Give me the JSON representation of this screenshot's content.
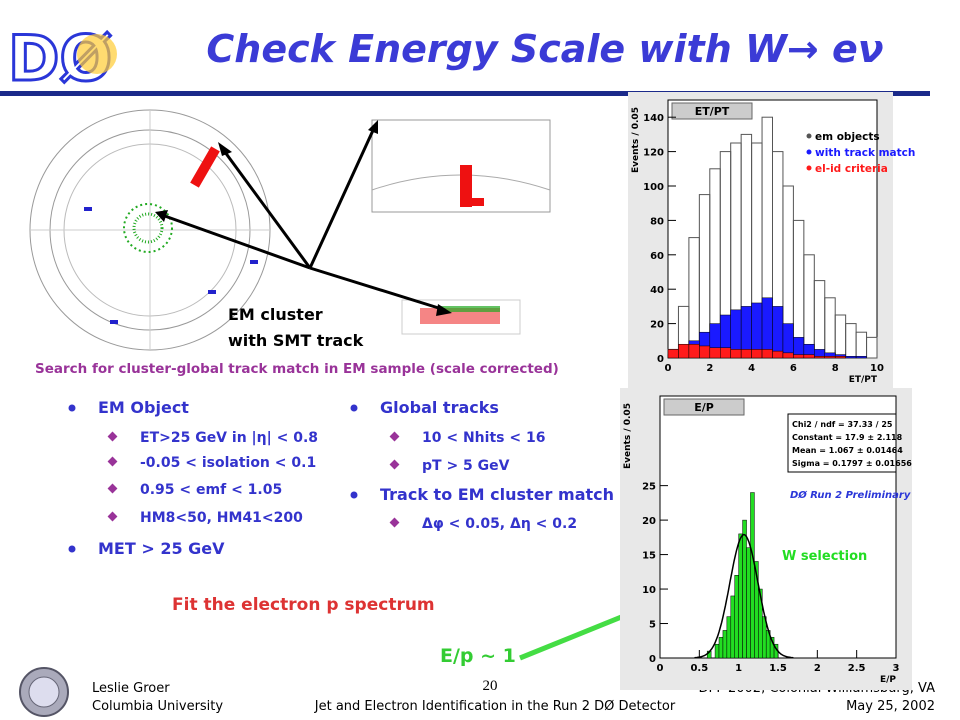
{
  "header": {
    "logo": "DØ",
    "title": "Check Energy Scale with W→ eν"
  },
  "event_display": {
    "label": [
      "EM cluster",
      "with SMT track"
    ]
  },
  "caption": "Search for cluster-global track match in EM sample (scale corrected)",
  "left_list": [
    {
      "text": "EM Object",
      "items": [
        "ET>25 GeV in |η| < 0.8",
        "-0.05 < isolation < 0.1",
        "0.95 < emf < 1.05",
        "HM8<50, HM41<200"
      ]
    },
    {
      "text": "MET > 25 GeV",
      "items": []
    }
  ],
  "right_list": [
    {
      "text": "Global tracks",
      "items": [
        "10 < Nhits < 16",
        "pT > 5 GeV"
      ]
    },
    {
      "text": "Track to EM cluster match",
      "items": [
        "Δφ < 0.05, Δη < 0.2"
      ]
    }
  ],
  "fit_note": "Fit the electron p spectrum",
  "ep_note": "E/p ~ 1",
  "w_selection": "W selection",
  "plots": [
    {
      "type": "histogram",
      "title": "ET/PT",
      "ylabel": "Events / 0.05",
      "xlabel": "ET/PT",
      "xlim": [
        0,
        10
      ],
      "ylim": [
        0,
        150
      ],
      "xticks": [
        0,
        2,
        4,
        6,
        8,
        10
      ],
      "yticks": [
        0,
        20,
        40,
        60,
        80,
        100,
        120,
        140
      ],
      "bins": [
        0,
        0.5,
        1,
        1.5,
        2,
        2.5,
        3,
        3.5,
        4,
        4.5,
        5,
        5.5,
        6,
        6.5,
        7,
        7.5,
        8,
        8.5,
        9,
        9.5,
        10
      ],
      "series": [
        {
          "name": "em objects",
          "color": "#555555",
          "values": [
            5,
            30,
            70,
            95,
            110,
            120,
            125,
            130,
            125,
            140,
            120,
            100,
            80,
            60,
            45,
            35,
            25,
            20,
            15,
            12
          ]
        },
        {
          "name": "with track match",
          "color": "#1a1aff",
          "values": [
            2,
            5,
            10,
            15,
            20,
            25,
            28,
            30,
            32,
            35,
            30,
            20,
            12,
            8,
            5,
            3,
            2,
            1,
            1,
            0
          ]
        },
        {
          "name": "el-id criteria",
          "color": "#ff1a1a",
          "values": [
            5,
            8,
            8,
            7,
            6,
            6,
            5,
            5,
            5,
            5,
            4,
            3,
            2,
            2,
            1,
            1,
            1,
            0,
            0,
            0
          ]
        }
      ]
    },
    {
      "type": "histogram",
      "title": "E/P",
      "ylabel": "Events / 0.05",
      "xlabel": "E/P",
      "xlim": [
        0,
        3
      ],
      "ylim": [
        0,
        38
      ],
      "xticks": [
        0,
        0.5,
        1,
        1.5,
        2,
        2.5,
        3
      ],
      "yticks": [
        0,
        5,
        10,
        15,
        20,
        25
      ],
      "stats": [
        "Chi2 / ndf = 37.33 / 25",
        "Constant = 17.9 ± 2.118",
        "Mean = 1.067 ± 0.01464",
        "Sigma = 0.1797 ± 0.01656"
      ],
      "fit": {
        "constant": 17.9,
        "mean": 1.067,
        "sigma": 0.1797
      },
      "preliminary": "DØ Run 2 Preliminary",
      "bins": [
        0.6,
        0.65,
        0.7,
        0.75,
        0.8,
        0.85,
        0.9,
        0.95,
        1,
        1.05,
        1.1,
        1.15,
        1.2,
        1.25,
        1.3,
        1.35,
        1.4,
        1.45,
        1.5
      ],
      "series": [
        {
          "name": "W selection",
          "color": "#22dd22",
          "values": [
            1,
            0,
            2,
            3,
            4,
            6,
            9,
            12,
            18,
            20,
            16,
            24,
            14,
            10,
            6,
            4,
            3,
            2
          ]
        }
      ]
    }
  ],
  "footer": {
    "author": "Leslie Groer",
    "institution": "Columbia University",
    "page": "20",
    "talk": "Jet and Electron Identification in the Run 2 DØ Detector",
    "venue": "DPF 2002, Colonial Williamsburg, VA",
    "date": "May 25, 2002"
  }
}
